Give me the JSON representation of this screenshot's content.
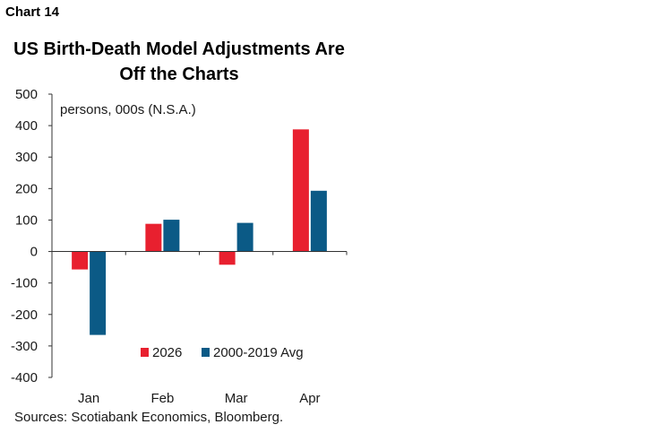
{
  "header": {
    "chart_label": "Chart 14",
    "title_line1": "US Birth-Death Model Adjustments Are",
    "title_line2": "Off the Charts"
  },
  "source": "Sources: Scotiabank Economics, Bloomberg.",
  "colors": {
    "series_2026": "#e8202f",
    "series_avg": "#0b5a86",
    "axis": "#333333"
  },
  "chart_data": {
    "type": "bar",
    "title": "US Birth-Death Model Adjustments Are Off the Charts",
    "unit_label": "persons, 000s (N.S.A.)",
    "categories": [
      "Jan",
      "Feb",
      "Mar",
      "Apr"
    ],
    "series": [
      {
        "name": "2026",
        "values": [
          -57,
          88,
          -42,
          388
        ]
      },
      {
        "name": "2000-2019 Avg",
        "values": [
          -265,
          101,
          91,
          193
        ]
      }
    ],
    "ylim": [
      -400,
      500
    ],
    "yticks": [
      -400,
      -300,
      -200,
      -100,
      0,
      100,
      200,
      300,
      400,
      500
    ],
    "ytick_labels": [
      "-400",
      "-300",
      "-200",
      "-100",
      "0",
      "100",
      "200",
      "300",
      "400",
      "500"
    ],
    "legend_position": "bottom-right",
    "grid": false
  }
}
